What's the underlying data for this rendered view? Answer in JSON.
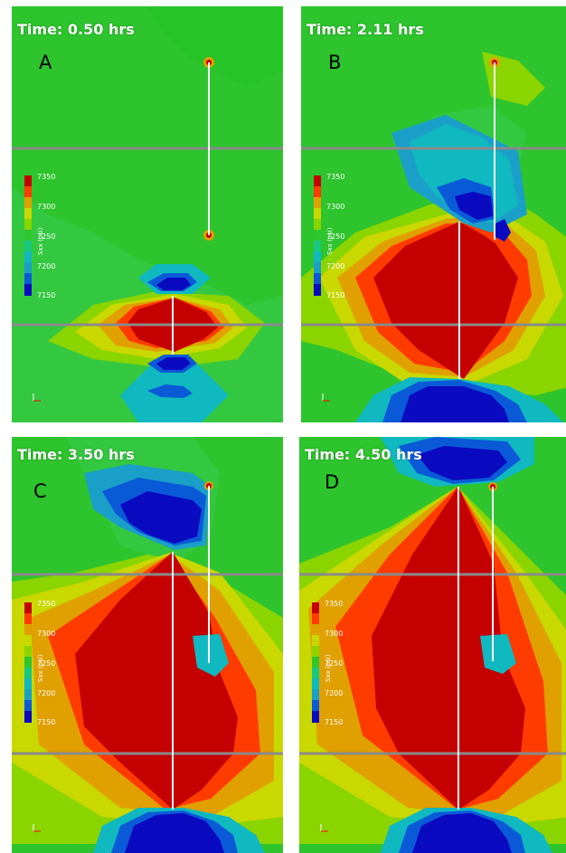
{
  "figure": {
    "panels": [
      {
        "letter": "A",
        "time": "Time: 0.50 hrs"
      },
      {
        "letter": "B",
        "time": "Time: 2.11 hrs"
      },
      {
        "letter": "C",
        "time": "Time: 3.50 hrs"
      },
      {
        "letter": "D",
        "time": "Time: 4.50 hrs"
      }
    ],
    "colorbar": {
      "title": "Sxx (psi)",
      "ticks": [
        "7350",
        "7300",
        "7250",
        "7200",
        "7150"
      ],
      "colors": [
        "#c40000",
        "#ff3b00",
        "#e0a000",
        "#c8d800",
        "#8ad400",
        "#2fc52f",
        "#18c880",
        "#10b8c0",
        "#1aa0c8",
        "#0a5ad8",
        "#0a0ac0"
      ]
    },
    "colors": {
      "background": "#2dc42d",
      "fracture": "#ffffff",
      "layer_boundary": "#8a8a8a"
    }
  }
}
